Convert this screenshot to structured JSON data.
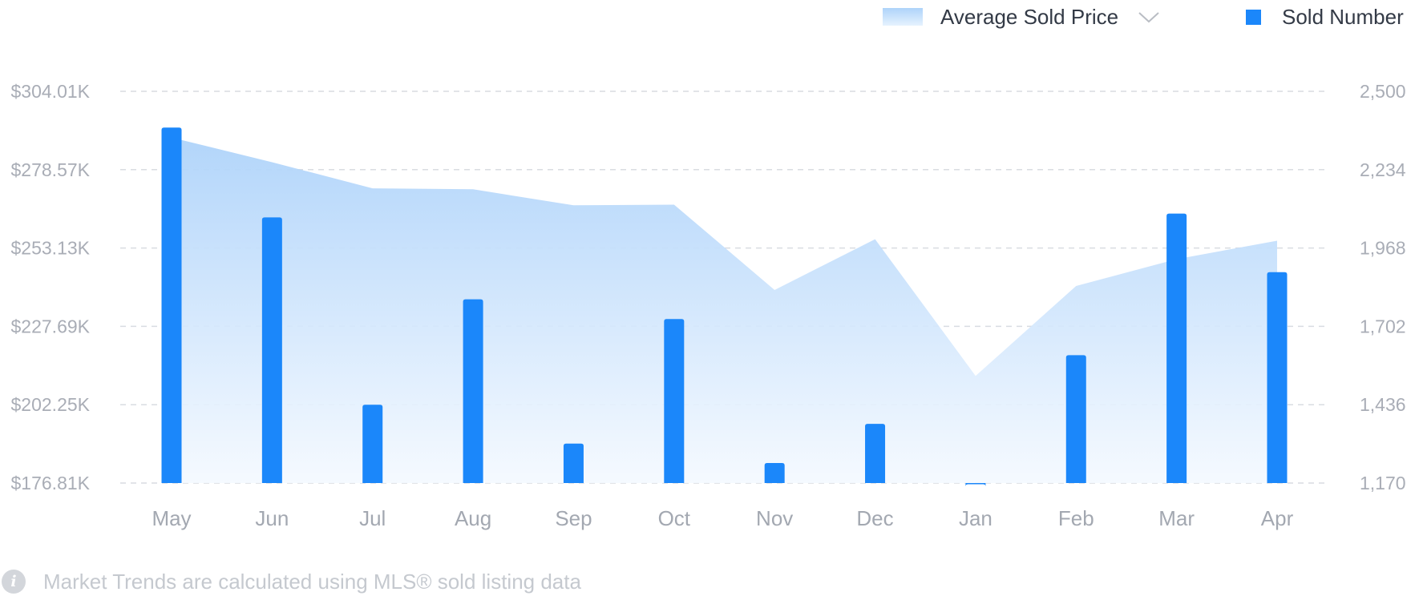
{
  "legend": {
    "area_label": "Average Sold Price",
    "bar_label": "Sold Number"
  },
  "footnote": {
    "icon": "info-icon",
    "text": "Market Trends are calculated using MLS® sold listing data"
  },
  "colors": {
    "bar": "#1b87fa",
    "area_top": "#aed3fa",
    "area_bottom": "#f4f9ff",
    "grid": "#d9dce1",
    "axis_text": "#a9adb6"
  },
  "chart_data": {
    "type": "bar",
    "categories": [
      "May",
      "Jun",
      "Jul",
      "Aug",
      "Sep",
      "Oct",
      "Nov",
      "Dec",
      "Jan",
      "Feb",
      "Mar",
      "Apr"
    ],
    "series": [
      {
        "name": "Average Sold Price",
        "kind": "area",
        "axis": "left",
        "values": [
          289000,
          281000,
          272500,
          272200,
          267000,
          267200,
          239500,
          256000,
          211600,
          240800,
          249500,
          255500
        ]
      },
      {
        "name": "Sold Number",
        "kind": "bar",
        "axis": "right",
        "values": [
          2377,
          2072,
          1436,
          1794,
          1304,
          1727,
          1238,
          1371,
          1166,
          1604,
          2085,
          1886
        ]
      }
    ],
    "y_left": {
      "range": [
        176810,
        304010
      ],
      "ticks": [
        "$304.01K",
        "$278.57K",
        "$253.13K",
        "$227.69K",
        "$202.25K",
        "$176.81K"
      ]
    },
    "y_right": {
      "range": [
        1170,
        2500
      ],
      "ticks": [
        "2,500",
        "2,234",
        "1,968",
        "1,702",
        "1,436",
        "1,170"
      ]
    },
    "grid": true,
    "legend_position": "top-right"
  }
}
